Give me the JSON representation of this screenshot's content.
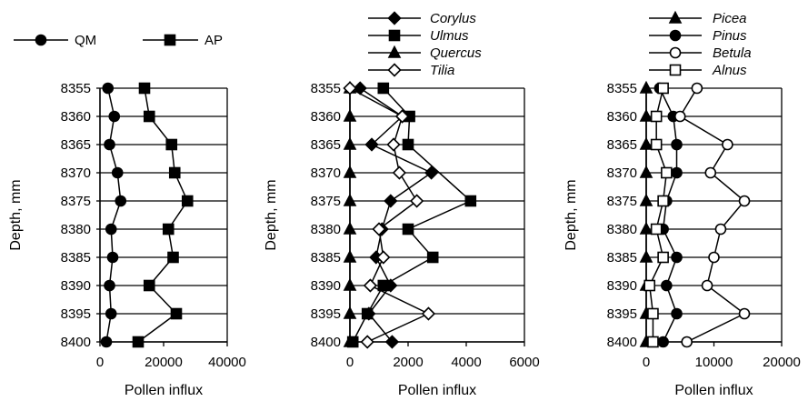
{
  "chart_data": [
    {
      "type": "line",
      "orientation": "horizontal-depth",
      "xlabel": "Pollen influx",
      "ylabel": "Depth, mm",
      "xlim": [
        0,
        40000
      ],
      "xticks": [
        0,
        20000,
        40000
      ],
      "ylim": [
        8355,
        8400
      ],
      "yticks": [
        8355,
        8360,
        8365,
        8370,
        8375,
        8380,
        8385,
        8390,
        8395,
        8400
      ],
      "grid": "horizontal",
      "legend": "top",
      "series": [
        {
          "name": "QM",
          "marker": "filled-circle",
          "depth": [
            8355,
            8360,
            8365,
            8370,
            8375,
            8380,
            8385,
            8390,
            8395,
            8400
          ],
          "values": [
            2500,
            4500,
            3000,
            5500,
            6500,
            3500,
            4000,
            3000,
            3500,
            2000
          ]
        },
        {
          "name": "AP",
          "marker": "filled-square",
          "depth": [
            8355,
            8360,
            8365,
            8370,
            8375,
            8380,
            8385,
            8390,
            8395,
            8400
          ],
          "values": [
            14000,
            15500,
            22500,
            23500,
            27500,
            21500,
            23000,
            15500,
            24000,
            12000
          ]
        }
      ]
    },
    {
      "type": "line",
      "orientation": "horizontal-depth",
      "xlabel": "Pollen influx",
      "ylabel": "Depth, mm",
      "xlim": [
        0,
        6000
      ],
      "xticks": [
        0,
        2000,
        4000,
        6000
      ],
      "ylim": [
        8355,
        8400
      ],
      "yticks": [
        8355,
        8360,
        8365,
        8370,
        8375,
        8380,
        8385,
        8390,
        8395,
        8400
      ],
      "grid": "horizontal",
      "legend": "top",
      "series": [
        {
          "name": "Corylus",
          "marker": "filled-diamond",
          "depth": [
            8355,
            8360,
            8365,
            8370,
            8375,
            8380,
            8385,
            8390,
            8395,
            8400
          ],
          "values": [
            350,
            1800,
            750,
            2800,
            1400,
            1100,
            900,
            1400,
            650,
            1450
          ]
        },
        {
          "name": "Ulmus",
          "marker": "filled-square",
          "depth": [
            8355,
            8360,
            8365,
            8370,
            8375,
            8380,
            8385,
            8390,
            8395,
            8400
          ],
          "values": [
            1150,
            2050,
            2000,
            null,
            4150,
            2000,
            2850,
            1150,
            600,
            100
          ]
        },
        {
          "name": "Quercus",
          "marker": "filled-triangle",
          "depth": [
            8355,
            8360,
            8365,
            8370,
            8375,
            8380,
            8385,
            8390,
            8395,
            8400
          ],
          "values": [
            0,
            0,
            0,
            0,
            0,
            0,
            0,
            0,
            0,
            0
          ]
        },
        {
          "name": "Tilia",
          "marker": "open-diamond",
          "depth": [
            8355,
            8360,
            8365,
            8370,
            8375,
            8380,
            8385,
            8390,
            8395,
            8400
          ],
          "values": [
            0,
            1800,
            1500,
            1700,
            2300,
            1000,
            1150,
            700,
            2700,
            600
          ]
        }
      ]
    },
    {
      "type": "line",
      "orientation": "horizontal-depth",
      "xlabel": "Pollen influx",
      "ylabel": "Depth, mm",
      "xlim": [
        0,
        20000
      ],
      "xticks": [
        0,
        10000,
        20000
      ],
      "ylim": [
        8355,
        8400
      ],
      "yticks": [
        8355,
        8360,
        8365,
        8370,
        8375,
        8380,
        8385,
        8390,
        8395,
        8400
      ],
      "grid": "horizontal",
      "legend": "top",
      "series": [
        {
          "name": "Picea",
          "marker": "filled-triangle",
          "depth": [
            8355,
            8360,
            8365,
            8370,
            8375,
            8380,
            8385,
            8390,
            8395,
            8400
          ],
          "values": [
            0,
            0,
            0,
            0,
            0,
            0,
            0,
            0,
            0,
            0
          ]
        },
        {
          "name": "Pinus",
          "marker": "filled-circle",
          "depth": [
            8355,
            8360,
            8365,
            8370,
            8375,
            8380,
            8385,
            8390,
            8395,
            8400
          ],
          "values": [
            2000,
            4000,
            4500,
            4500,
            3000,
            2500,
            4500,
            3000,
            4500,
            2500
          ]
        },
        {
          "name": "Betula",
          "marker": "open-circle",
          "depth": [
            8355,
            8360,
            8365,
            8370,
            8375,
            8380,
            8385,
            8390,
            8395,
            8400
          ],
          "values": [
            7500,
            5000,
            12000,
            9500,
            14500,
            11000,
            10000,
            9000,
            14500,
            6000
          ]
        },
        {
          "name": "Alnus",
          "marker": "open-square",
          "depth": [
            8355,
            8360,
            8365,
            8370,
            8375,
            8380,
            8385,
            8390,
            8395,
            8400
          ],
          "values": [
            2500,
            1500,
            1500,
            3000,
            2500,
            1500,
            2500,
            500,
            1000,
            1000
          ]
        }
      ]
    }
  ]
}
